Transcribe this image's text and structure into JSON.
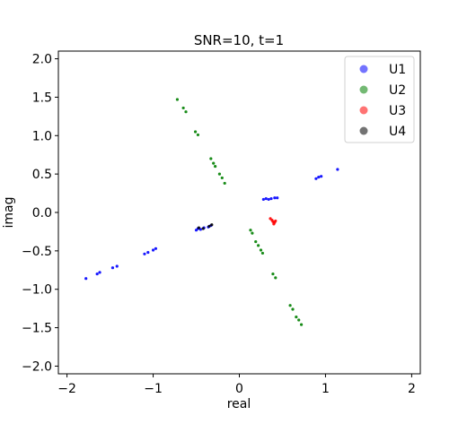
{
  "chart_data": {
    "type": "scatter",
    "title": "SNR=10, t=1",
    "xlabel": "real",
    "ylabel": "imag",
    "xlim": [
      -2.1,
      2.1
    ],
    "ylim": [
      -2.1,
      2.1
    ],
    "xticks": [
      -2,
      -1,
      0,
      1,
      2
    ],
    "xtick_labels": [
      "−2",
      "−1",
      "0",
      "1",
      "2"
    ],
    "yticks": [
      -2.0,
      -1.5,
      -1.0,
      -0.5,
      0.0,
      0.5,
      1.0,
      1.5,
      2.0
    ],
    "ytick_labels": [
      "−2.0",
      "−1.5",
      "−1.0",
      "−0.5",
      "0.0",
      "0.5",
      "1.0",
      "1.5",
      "2.0"
    ],
    "grid": false,
    "legend_position": "top-right",
    "series": [
      {
        "name": "U1",
        "color": "#0000ff",
        "points": [
          [
            -1.78,
            -0.86
          ],
          [
            -1.65,
            -0.8
          ],
          [
            -1.62,
            -0.78
          ],
          [
            -1.47,
            -0.72
          ],
          [
            -1.42,
            -0.7
          ],
          [
            -1.1,
            -0.54
          ],
          [
            -1.06,
            -0.52
          ],
          [
            -1.0,
            -0.49
          ],
          [
            -0.97,
            -0.47
          ],
          [
            -0.5,
            -0.23
          ],
          [
            -0.48,
            -0.21
          ],
          [
            -0.45,
            -0.22
          ],
          [
            -0.41,
            -0.2
          ],
          [
            -0.36,
            -0.19
          ],
          [
            -0.33,
            -0.17
          ],
          [
            0.28,
            0.17
          ],
          [
            0.31,
            0.18
          ],
          [
            0.34,
            0.17
          ],
          [
            0.37,
            0.18
          ],
          [
            0.41,
            0.19
          ],
          [
            0.44,
            0.19
          ],
          [
            0.89,
            0.44
          ],
          [
            0.92,
            0.46
          ],
          [
            0.95,
            0.47
          ],
          [
            1.14,
            0.56
          ]
        ]
      },
      {
        "name": "U2",
        "color": "#008000",
        "points": [
          [
            -0.72,
            1.47
          ],
          [
            -0.65,
            1.36
          ],
          [
            -0.62,
            1.31
          ],
          [
            -0.51,
            1.05
          ],
          [
            -0.48,
            1.01
          ],
          [
            -0.33,
            0.7
          ],
          [
            -0.3,
            0.64
          ],
          [
            -0.28,
            0.6
          ],
          [
            -0.23,
            0.5
          ],
          [
            -0.2,
            0.45
          ],
          [
            -0.17,
            0.38
          ],
          [
            0.13,
            -0.23
          ],
          [
            0.15,
            -0.27
          ],
          [
            0.19,
            -0.38
          ],
          [
            0.22,
            -0.43
          ],
          [
            0.25,
            -0.49
          ],
          [
            0.27,
            -0.53
          ],
          [
            0.39,
            -0.8
          ],
          [
            0.42,
            -0.85
          ],
          [
            0.59,
            -1.21
          ],
          [
            0.62,
            -1.26
          ],
          [
            0.66,
            -1.36
          ],
          [
            0.69,
            -1.4
          ],
          [
            0.72,
            -1.46
          ]
        ]
      },
      {
        "name": "U3",
        "color": "#ff0000",
        "points": [
          [
            0.36,
            -0.08
          ],
          [
            0.38,
            -0.1
          ],
          [
            0.39,
            -0.12
          ],
          [
            0.41,
            -0.13
          ],
          [
            0.4,
            -0.15
          ],
          [
            0.42,
            -0.11
          ]
        ]
      },
      {
        "name": "U4",
        "color": "#000000",
        "points": [
          [
            -0.47,
            -0.2
          ],
          [
            -0.42,
            -0.21
          ],
          [
            -0.35,
            -0.18
          ],
          [
            -0.32,
            -0.16
          ]
        ]
      }
    ]
  }
}
